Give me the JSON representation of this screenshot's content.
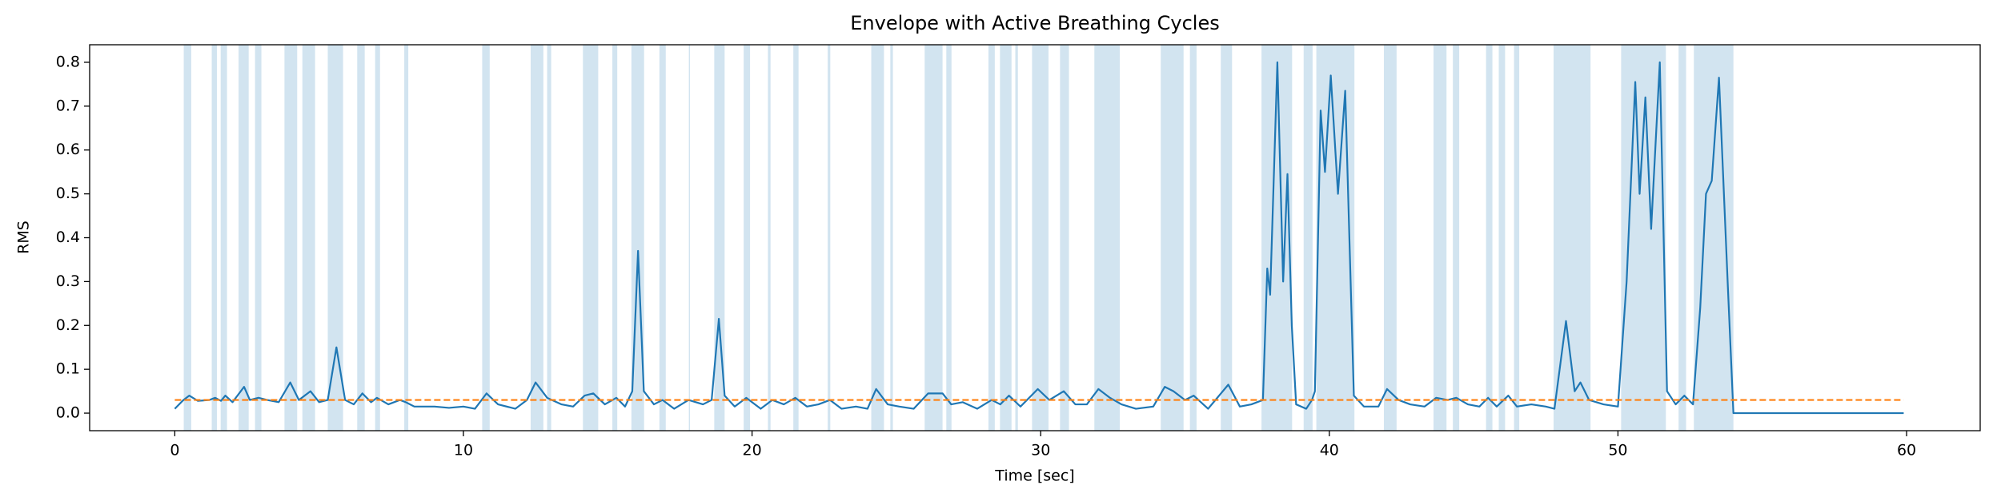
{
  "chart_data": {
    "type": "line",
    "title": "Envelope with Active Breathing Cycles",
    "xlabel": "Time [sec]",
    "ylabel": "RMS",
    "xlim": [
      -2.95,
      62.55
    ],
    "ylim": [
      -0.04,
      0.84
    ],
    "xticks": [
      0,
      10,
      20,
      30,
      40,
      50,
      60
    ],
    "yticks": [
      {
        "value": 0,
        "label": "0.0"
      },
      0.1,
      0.2,
      0.3,
      0.4,
      0.5,
      0.6,
      0.7,
      0.8
    ],
    "span_color": "#1f77b4",
    "spans": [
      [
        0.31,
        0.57
      ],
      [
        1.28,
        1.46
      ],
      [
        1.59,
        1.81
      ],
      [
        2.21,
        2.56
      ],
      [
        2.78,
        3.0
      ],
      [
        3.8,
        4.24
      ],
      [
        4.42,
        4.86
      ],
      [
        5.3,
        5.83
      ],
      [
        6.32,
        6.58
      ],
      [
        6.94,
        7.11
      ],
      [
        7.95,
        8.09
      ],
      [
        10.65,
        10.91
      ],
      [
        12.33,
        12.77
      ],
      [
        12.9,
        13.04
      ],
      [
        14.14,
        14.67
      ],
      [
        15.16,
        15.33
      ],
      [
        15.82,
        16.26
      ],
      [
        16.79,
        17.01
      ],
      [
        17.81,
        17.85
      ],
      [
        18.69,
        19.05
      ],
      [
        19.71,
        19.93
      ],
      [
        20.55,
        20.64
      ],
      [
        21.43,
        21.61
      ],
      [
        22.62,
        22.71
      ],
      [
        24.13,
        24.57
      ],
      [
        24.79,
        24.88
      ],
      [
        25.98,
        26.6
      ],
      [
        26.73,
        26.91
      ],
      [
        28.19,
        28.41
      ],
      [
        28.59,
        28.99
      ],
      [
        29.12,
        29.21
      ],
      [
        29.7,
        30.27
      ],
      [
        30.67,
        30.98
      ],
      [
        31.86,
        32.74
      ],
      [
        34.16,
        34.95
      ],
      [
        35.17,
        35.4
      ],
      [
        36.24,
        36.63
      ],
      [
        37.65,
        38.71
      ],
      [
        39.11,
        39.42
      ],
      [
        39.55,
        40.87
      ],
      [
        41.89,
        42.33
      ],
      [
        43.61,
        44.06
      ],
      [
        44.28,
        44.5
      ],
      [
        45.43,
        45.65
      ],
      [
        45.87,
        46.09
      ],
      [
        46.4,
        46.58
      ],
      [
        47.77,
        49.05
      ],
      [
        50.11,
        51.66
      ],
      [
        52.1,
        52.36
      ],
      [
        52.63,
        54.0
      ]
    ],
    "series": [
      {
        "color": "#1f77b4",
        "dashed": false,
        "x": [
          0,
          0.3,
          0.5,
          0.8,
          1.2,
          1.4,
          1.6,
          1.75,
          2.0,
          2.4,
          2.6,
          2.9,
          3.2,
          3.6,
          4.0,
          4.3,
          4.7,
          5.0,
          5.3,
          5.6,
          5.9,
          6.2,
          6.5,
          6.8,
          7.0,
          7.4,
          7.8,
          8.0,
          8.3,
          9,
          9.5,
          10,
          10.4,
          10.8,
          11.2,
          11.8,
          12.2,
          12.5,
          12.9,
          13.4,
          13.8,
          14.2,
          14.5,
          14.9,
          15.3,
          15.6,
          15.85,
          16.05,
          16.25,
          16.6,
          16.9,
          17.3,
          17.8,
          18.3,
          18.6,
          18.85,
          19.05,
          19.4,
          19.8,
          20.3,
          20.7,
          21.1,
          21.5,
          21.9,
          22.3,
          22.7,
          23.1,
          23.6,
          24.0,
          24.3,
          24.7,
          25.1,
          25.6,
          26.1,
          26.6,
          26.9,
          27.3,
          27.8,
          28.3,
          28.6,
          28.9,
          29.3,
          29.9,
          30.3,
          30.8,
          31.2,
          31.6,
          32.0,
          32.4,
          32.8,
          33.3,
          33.9,
          34.3,
          34.6,
          35.0,
          35.3,
          35.8,
          36.5,
          36.9,
          37.3,
          37.7,
          37.85,
          37.95,
          38.2,
          38.4,
          38.55,
          38.7,
          38.85,
          39.2,
          39.4,
          39.5,
          39.7,
          39.85,
          40.05,
          40.3,
          40.55,
          40.85,
          41.2,
          41.7,
          42.0,
          42.4,
          42.8,
          43.3,
          43.7,
          44.1,
          44.4,
          44.8,
          45.2,
          45.5,
          45.8,
          46.2,
          46.5,
          47.0,
          47.5,
          47.8,
          48.2,
          48.5,
          48.7,
          49.0,
          49.5,
          50.0,
          50.3,
          50.6,
          50.75,
          50.95,
          51.15,
          51.45,
          51.7,
          52.0,
          52.3,
          52.6,
          52.85,
          53.05,
          53.25,
          53.5,
          53.8,
          54.0,
          59.9
        ],
        "values": [
          0.01,
          0.03,
          0.04,
          0.028,
          0.03,
          0.035,
          0.028,
          0.04,
          0.025,
          0.06,
          0.03,
          0.035,
          0.03,
          0.025,
          0.07,
          0.03,
          0.05,
          0.025,
          0.03,
          0.15,
          0.03,
          0.02,
          0.045,
          0.025,
          0.035,
          0.02,
          0.03,
          0.025,
          0.015,
          0.015,
          0.012,
          0.015,
          0.01,
          0.045,
          0.02,
          0.01,
          0.03,
          0.07,
          0.035,
          0.02,
          0.015,
          0.04,
          0.045,
          0.02,
          0.035,
          0.015,
          0.05,
          0.37,
          0.05,
          0.02,
          0.03,
          0.01,
          0.03,
          0.02,
          0.03,
          0.215,
          0.04,
          0.015,
          0.035,
          0.01,
          0.03,
          0.02,
          0.035,
          0.015,
          0.02,
          0.03,
          0.01,
          0.015,
          0.01,
          0.055,
          0.02,
          0.015,
          0.01,
          0.045,
          0.045,
          0.02,
          0.025,
          0.01,
          0.03,
          0.02,
          0.04,
          0.015,
          0.055,
          0.03,
          0.05,
          0.02,
          0.02,
          0.055,
          0.035,
          0.02,
          0.01,
          0.015,
          0.06,
          0.05,
          0.03,
          0.04,
          0.01,
          0.065,
          0.015,
          0.02,
          0.03,
          0.33,
          0.27,
          0.8,
          0.3,
          0.545,
          0.2,
          0.02,
          0.01,
          0.03,
          0.05,
          0.69,
          0.55,
          0.77,
          0.5,
          0.735,
          0.04,
          0.015,
          0.015,
          0.055,
          0.03,
          0.02,
          0.015,
          0.035,
          0.03,
          0.035,
          0.02,
          0.015,
          0.035,
          0.015,
          0.04,
          0.015,
          0.02,
          0.015,
          0.01,
          0.21,
          0.05,
          0.07,
          0.03,
          0.02,
          0.015,
          0.3,
          0.755,
          0.5,
          0.72,
          0.42,
          0.8,
          0.05,
          0.02,
          0.04,
          0.02,
          0.24,
          0.5,
          0.53,
          0.765,
          0.3,
          0.0,
          0.0
        ]
      },
      {
        "color": "#ff7f0e",
        "dashed": true,
        "x": [
          0,
          59.9
        ],
        "values": [
          0.03,
          0.03
        ]
      }
    ]
  }
}
